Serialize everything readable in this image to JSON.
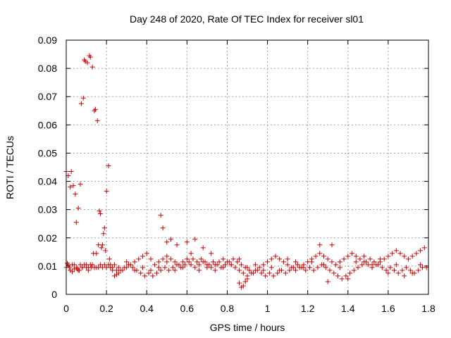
{
  "chart_data": {
    "type": "scatter",
    "title": "Day 248 of 2020, Rate Of TEC Index for receiver sl01",
    "xlabel": "GPS time / hours",
    "ylabel": "ROTI / TECUs",
    "xlim": [
      0,
      1.8
    ],
    "ylim": [
      0,
      0.09
    ],
    "xticks": [
      "0",
      "0.2",
      "0.4",
      "0.6",
      "0.8",
      "1",
      "1.2",
      "1.4",
      "1.6",
      "1.8"
    ],
    "yticks": [
      "0",
      "0.01",
      "0.02",
      "0.03",
      "0.04",
      "0.05",
      "0.06",
      "0.07",
      "0.08",
      "0.09"
    ],
    "grid": true,
    "marker": "plus",
    "color": "#cc0000",
    "series": [
      {
        "points": [
          [
            0.0,
            0.0435
          ],
          [
            0.005,
            0.011
          ],
          [
            0.01,
            0.042
          ],
          [
            0.015,
            0.0095
          ],
          [
            0.02,
            0.038
          ],
          [
            0.025,
            0.0435
          ],
          [
            0.03,
            0.008
          ],
          [
            0.035,
            0.0385
          ],
          [
            0.04,
            0.0105
          ],
          [
            0.045,
            0.0355
          ],
          [
            0.05,
            0.0255
          ],
          [
            0.055,
            0.009
          ],
          [
            0.06,
            0.0305
          ],
          [
            0.065,
            0.0085
          ],
          [
            0.07,
            0.039
          ],
          [
            0.075,
            0.0675
          ],
          [
            0.08,
            0.0095
          ],
          [
            0.085,
            0.0695
          ],
          [
            0.09,
            0.083
          ],
          [
            0.095,
            0.0825
          ],
          [
            0.1,
            0.0105
          ],
          [
            0.105,
            0.082
          ],
          [
            0.11,
            0.0085
          ],
          [
            0.115,
            0.0845
          ],
          [
            0.12,
            0.084
          ],
          [
            0.125,
            0.0095
          ],
          [
            0.13,
            0.0805
          ],
          [
            0.135,
            0.0145
          ],
          [
            0.14,
            0.065
          ],
          [
            0.145,
            0.0655
          ],
          [
            0.15,
            0.0145
          ],
          [
            0.155,
            0.0615
          ],
          [
            0.16,
            0.0175
          ],
          [
            0.165,
            0.0295
          ],
          [
            0.17,
            0.0285
          ],
          [
            0.175,
            0.0165
          ],
          [
            0.18,
            0.0175
          ],
          [
            0.185,
            0.0215
          ],
          [
            0.19,
            0.0235
          ],
          [
            0.195,
            0.0155
          ],
          [
            0.2,
            0.0365
          ],
          [
            0.21,
            0.0455
          ],
          [
            0.215,
            0.0125
          ],
          [
            0.22,
            0.0105
          ],
          [
            0.23,
            0.0085
          ],
          [
            0.24,
            0.0065
          ],
          [
            0.25,
            0.007
          ],
          [
            0.47,
            0.028
          ],
          [
            0.48,
            0.0235
          ],
          [
            0.5,
            0.0185
          ],
          [
            0.52,
            0.0195
          ],
          [
            0.55,
            0.0175
          ],
          [
            0.6,
            0.0185
          ],
          [
            0.64,
            0.0195
          ],
          [
            0.68,
            0.0165
          ],
          [
            0.72,
            0.0145
          ],
          [
            0.86,
            0.004
          ],
          [
            0.87,
            0.0025
          ],
          [
            0.88,
            0.003
          ],
          [
            0.89,
            0.0045
          ],
          [
            0.9,
            0.0055
          ]
        ]
      },
      {
        "points": [
          [
            0.0,
            0.0095
          ],
          [
            0.02,
            0.0085
          ],
          [
            0.04,
            0.009
          ],
          [
            0.06,
            0.0085
          ],
          [
            0.08,
            0.0095
          ],
          [
            0.1,
            0.0095
          ],
          [
            0.12,
            0.0105
          ],
          [
            0.14,
            0.0095
          ],
          [
            0.16,
            0.0095
          ],
          [
            0.18,
            0.0095
          ],
          [
            0.2,
            0.0095
          ],
          [
            0.22,
            0.0095
          ],
          [
            0.24,
            0.0105
          ],
          [
            0.26,
            0.0095
          ],
          [
            0.28,
            0.0085
          ],
          [
            0.3,
            0.0095
          ],
          [
            0.32,
            0.0105
          ],
          [
            0.34,
            0.0115
          ],
          [
            0.36,
            0.0125
          ],
          [
            0.38,
            0.0135
          ],
          [
            0.4,
            0.0145
          ],
          [
            0.42,
            0.0125
          ],
          [
            0.44,
            0.0105
          ],
          [
            0.46,
            0.0115
          ],
          [
            0.48,
            0.0125
          ],
          [
            0.5,
            0.0135
          ],
          [
            0.52,
            0.0125
          ],
          [
            0.54,
            0.0115
          ],
          [
            0.56,
            0.0105
          ],
          [
            0.58,
            0.0115
          ],
          [
            0.6,
            0.0125
          ],
          [
            0.62,
            0.0105
          ],
          [
            0.64,
            0.0095
          ],
          [
            0.66,
            0.0105
          ],
          [
            0.68,
            0.0115
          ],
          [
            0.7,
            0.0105
          ],
          [
            0.72,
            0.0095
          ],
          [
            0.74,
            0.0105
          ],
          [
            0.76,
            0.0115
          ],
          [
            0.78,
            0.0125
          ],
          [
            0.8,
            0.0115
          ],
          [
            0.82,
            0.0105
          ],
          [
            0.84,
            0.0095
          ],
          [
            0.86,
            0.0085
          ],
          [
            0.88,
            0.0075
          ],
          [
            0.9,
            0.0065
          ],
          [
            0.92,
            0.0075
          ],
          [
            0.94,
            0.0085
          ],
          [
            0.96,
            0.0095
          ],
          [
            0.98,
            0.0105
          ],
          [
            1.0,
            0.0115
          ],
          [
            1.02,
            0.0125
          ],
          [
            1.04,
            0.0135
          ],
          [
            1.06,
            0.0125
          ],
          [
            1.08,
            0.0115
          ],
          [
            1.1,
            0.0105
          ],
          [
            1.12,
            0.0095
          ],
          [
            1.14,
            0.0085
          ],
          [
            1.16,
            0.0095
          ],
          [
            1.18,
            0.0105
          ],
          [
            1.2,
            0.0115
          ],
          [
            1.22,
            0.0125
          ],
          [
            1.24,
            0.0135
          ],
          [
            1.26,
            0.0145
          ],
          [
            1.28,
            0.0135
          ],
          [
            1.3,
            0.0125
          ],
          [
            1.32,
            0.0115
          ],
          [
            1.34,
            0.0105
          ],
          [
            1.36,
            0.0115
          ],
          [
            1.38,
            0.0125
          ],
          [
            1.4,
            0.0135
          ],
          [
            1.42,
            0.0145
          ],
          [
            1.44,
            0.0135
          ],
          [
            1.46,
            0.0125
          ],
          [
            1.48,
            0.0115
          ],
          [
            1.5,
            0.0105
          ],
          [
            1.52,
            0.0095
          ],
          [
            1.54,
            0.0105
          ],
          [
            1.56,
            0.0115
          ],
          [
            1.58,
            0.0125
          ],
          [
            1.6,
            0.0135
          ],
          [
            1.62,
            0.0145
          ],
          [
            1.64,
            0.0155
          ],
          [
            1.66,
            0.0145
          ],
          [
            1.68,
            0.0135
          ],
          [
            1.7,
            0.0125
          ],
          [
            1.72,
            0.0135
          ],
          [
            1.74,
            0.0145
          ],
          [
            1.76,
            0.0155
          ],
          [
            1.78,
            0.0165
          ]
        ]
      },
      {
        "points": [
          [
            0.01,
            0.0105
          ],
          [
            0.03,
            0.0105
          ],
          [
            0.05,
            0.0095
          ],
          [
            0.07,
            0.0105
          ],
          [
            0.09,
            0.0105
          ],
          [
            0.11,
            0.0095
          ],
          [
            0.13,
            0.0105
          ],
          [
            0.15,
            0.0095
          ],
          [
            0.17,
            0.0105
          ],
          [
            0.19,
            0.0105
          ],
          [
            0.21,
            0.0105
          ],
          [
            0.23,
            0.0095
          ],
          [
            0.25,
            0.0085
          ],
          [
            0.27,
            0.0085
          ],
          [
            0.29,
            0.0095
          ],
          [
            0.31,
            0.0105
          ],
          [
            0.33,
            0.0095
          ],
          [
            0.35,
            0.0085
          ],
          [
            0.37,
            0.0075
          ],
          [
            0.39,
            0.0065
          ],
          [
            0.41,
            0.0075
          ],
          [
            0.43,
            0.0065
          ],
          [
            0.45,
            0.0075
          ],
          [
            0.47,
            0.0085
          ],
          [
            0.49,
            0.0095
          ],
          [
            0.51,
            0.0085
          ],
          [
            0.53,
            0.0095
          ],
          [
            0.55,
            0.0105
          ],
          [
            0.57,
            0.0095
          ],
          [
            0.59,
            0.0105
          ],
          [
            0.61,
            0.0115
          ],
          [
            0.63,
            0.0125
          ],
          [
            0.65,
            0.0115
          ],
          [
            0.67,
            0.0125
          ],
          [
            0.69,
            0.0115
          ],
          [
            0.71,
            0.0105
          ],
          [
            0.73,
            0.0115
          ],
          [
            0.75,
            0.0105
          ],
          [
            0.77,
            0.0095
          ],
          [
            0.79,
            0.0105
          ],
          [
            0.81,
            0.0115
          ],
          [
            0.83,
            0.0125
          ],
          [
            0.85,
            0.0115
          ],
          [
            0.87,
            0.0105
          ],
          [
            0.89,
            0.0095
          ],
          [
            0.91,
            0.0085
          ],
          [
            0.93,
            0.0075
          ],
          [
            0.95,
            0.0085
          ],
          [
            0.97,
            0.0075
          ],
          [
            0.99,
            0.0065
          ],
          [
            1.01,
            0.0075
          ],
          [
            1.03,
            0.0065
          ],
          [
            1.05,
            0.0075
          ],
          [
            1.07,
            0.0085
          ],
          [
            1.09,
            0.0075
          ],
          [
            1.11,
            0.0085
          ],
          [
            1.13,
            0.0095
          ],
          [
            1.15,
            0.0105
          ],
          [
            1.17,
            0.0095
          ],
          [
            1.19,
            0.0085
          ],
          [
            1.21,
            0.0095
          ],
          [
            1.23,
            0.0085
          ],
          [
            1.25,
            0.0095
          ],
          [
            1.27,
            0.0105
          ],
          [
            1.29,
            0.0095
          ],
          [
            1.31,
            0.0085
          ],
          [
            1.33,
            0.0075
          ],
          [
            1.35,
            0.0065
          ],
          [
            1.37,
            0.0055
          ],
          [
            1.39,
            0.0065
          ],
          [
            1.41,
            0.0075
          ],
          [
            1.43,
            0.0085
          ],
          [
            1.45,
            0.0095
          ],
          [
            1.47,
            0.0105
          ],
          [
            1.49,
            0.0115
          ],
          [
            1.51,
            0.0125
          ],
          [
            1.53,
            0.0115
          ],
          [
            1.55,
            0.0105
          ],
          [
            1.57,
            0.0095
          ],
          [
            1.59,
            0.0085
          ],
          [
            1.61,
            0.0095
          ],
          [
            1.63,
            0.0085
          ],
          [
            1.65,
            0.0075
          ],
          [
            1.67,
            0.0085
          ],
          [
            1.69,
            0.0095
          ],
          [
            1.71,
            0.0085
          ],
          [
            1.73,
            0.0075
          ],
          [
            1.75,
            0.0085
          ],
          [
            1.77,
            0.0095
          ],
          [
            1.79,
            0.0095
          ]
        ]
      },
      {
        "points": [
          [
            0.26,
            0.0075
          ],
          [
            0.3,
            0.0115
          ],
          [
            0.34,
            0.0085
          ],
          [
            0.38,
            0.0095
          ],
          [
            0.42,
            0.0085
          ],
          [
            0.46,
            0.0095
          ],
          [
            0.5,
            0.0115
          ],
          [
            0.54,
            0.0085
          ],
          [
            0.58,
            0.0095
          ],
          [
            0.62,
            0.0145
          ],
          [
            0.66,
            0.0085
          ],
          [
            0.7,
            0.0095
          ],
          [
            0.74,
            0.0085
          ],
          [
            0.78,
            0.0095
          ],
          [
            0.82,
            0.0105
          ],
          [
            0.86,
            0.0125
          ],
          [
            0.9,
            0.0095
          ],
          [
            0.94,
            0.0105
          ],
          [
            0.98,
            0.0085
          ],
          [
            1.02,
            0.0095
          ],
          [
            1.06,
            0.0085
          ],
          [
            1.1,
            0.0125
          ],
          [
            1.14,
            0.0115
          ],
          [
            1.18,
            0.0095
          ],
          [
            1.22,
            0.0115
          ],
          [
            1.26,
            0.0175
          ],
          [
            1.28,
            0.0105
          ],
          [
            1.3,
            0.0045
          ],
          [
            1.32,
            0.0175
          ],
          [
            1.36,
            0.0095
          ],
          [
            1.4,
            0.0055
          ],
          [
            1.44,
            0.0115
          ],
          [
            1.48,
            0.0135
          ],
          [
            1.52,
            0.0105
          ],
          [
            1.56,
            0.0125
          ],
          [
            1.6,
            0.0075
          ],
          [
            1.64,
            0.0105
          ],
          [
            1.68,
            0.0065
          ],
          [
            1.72,
            0.0075
          ],
          [
            1.76,
            0.0105
          ]
        ]
      }
    ]
  }
}
